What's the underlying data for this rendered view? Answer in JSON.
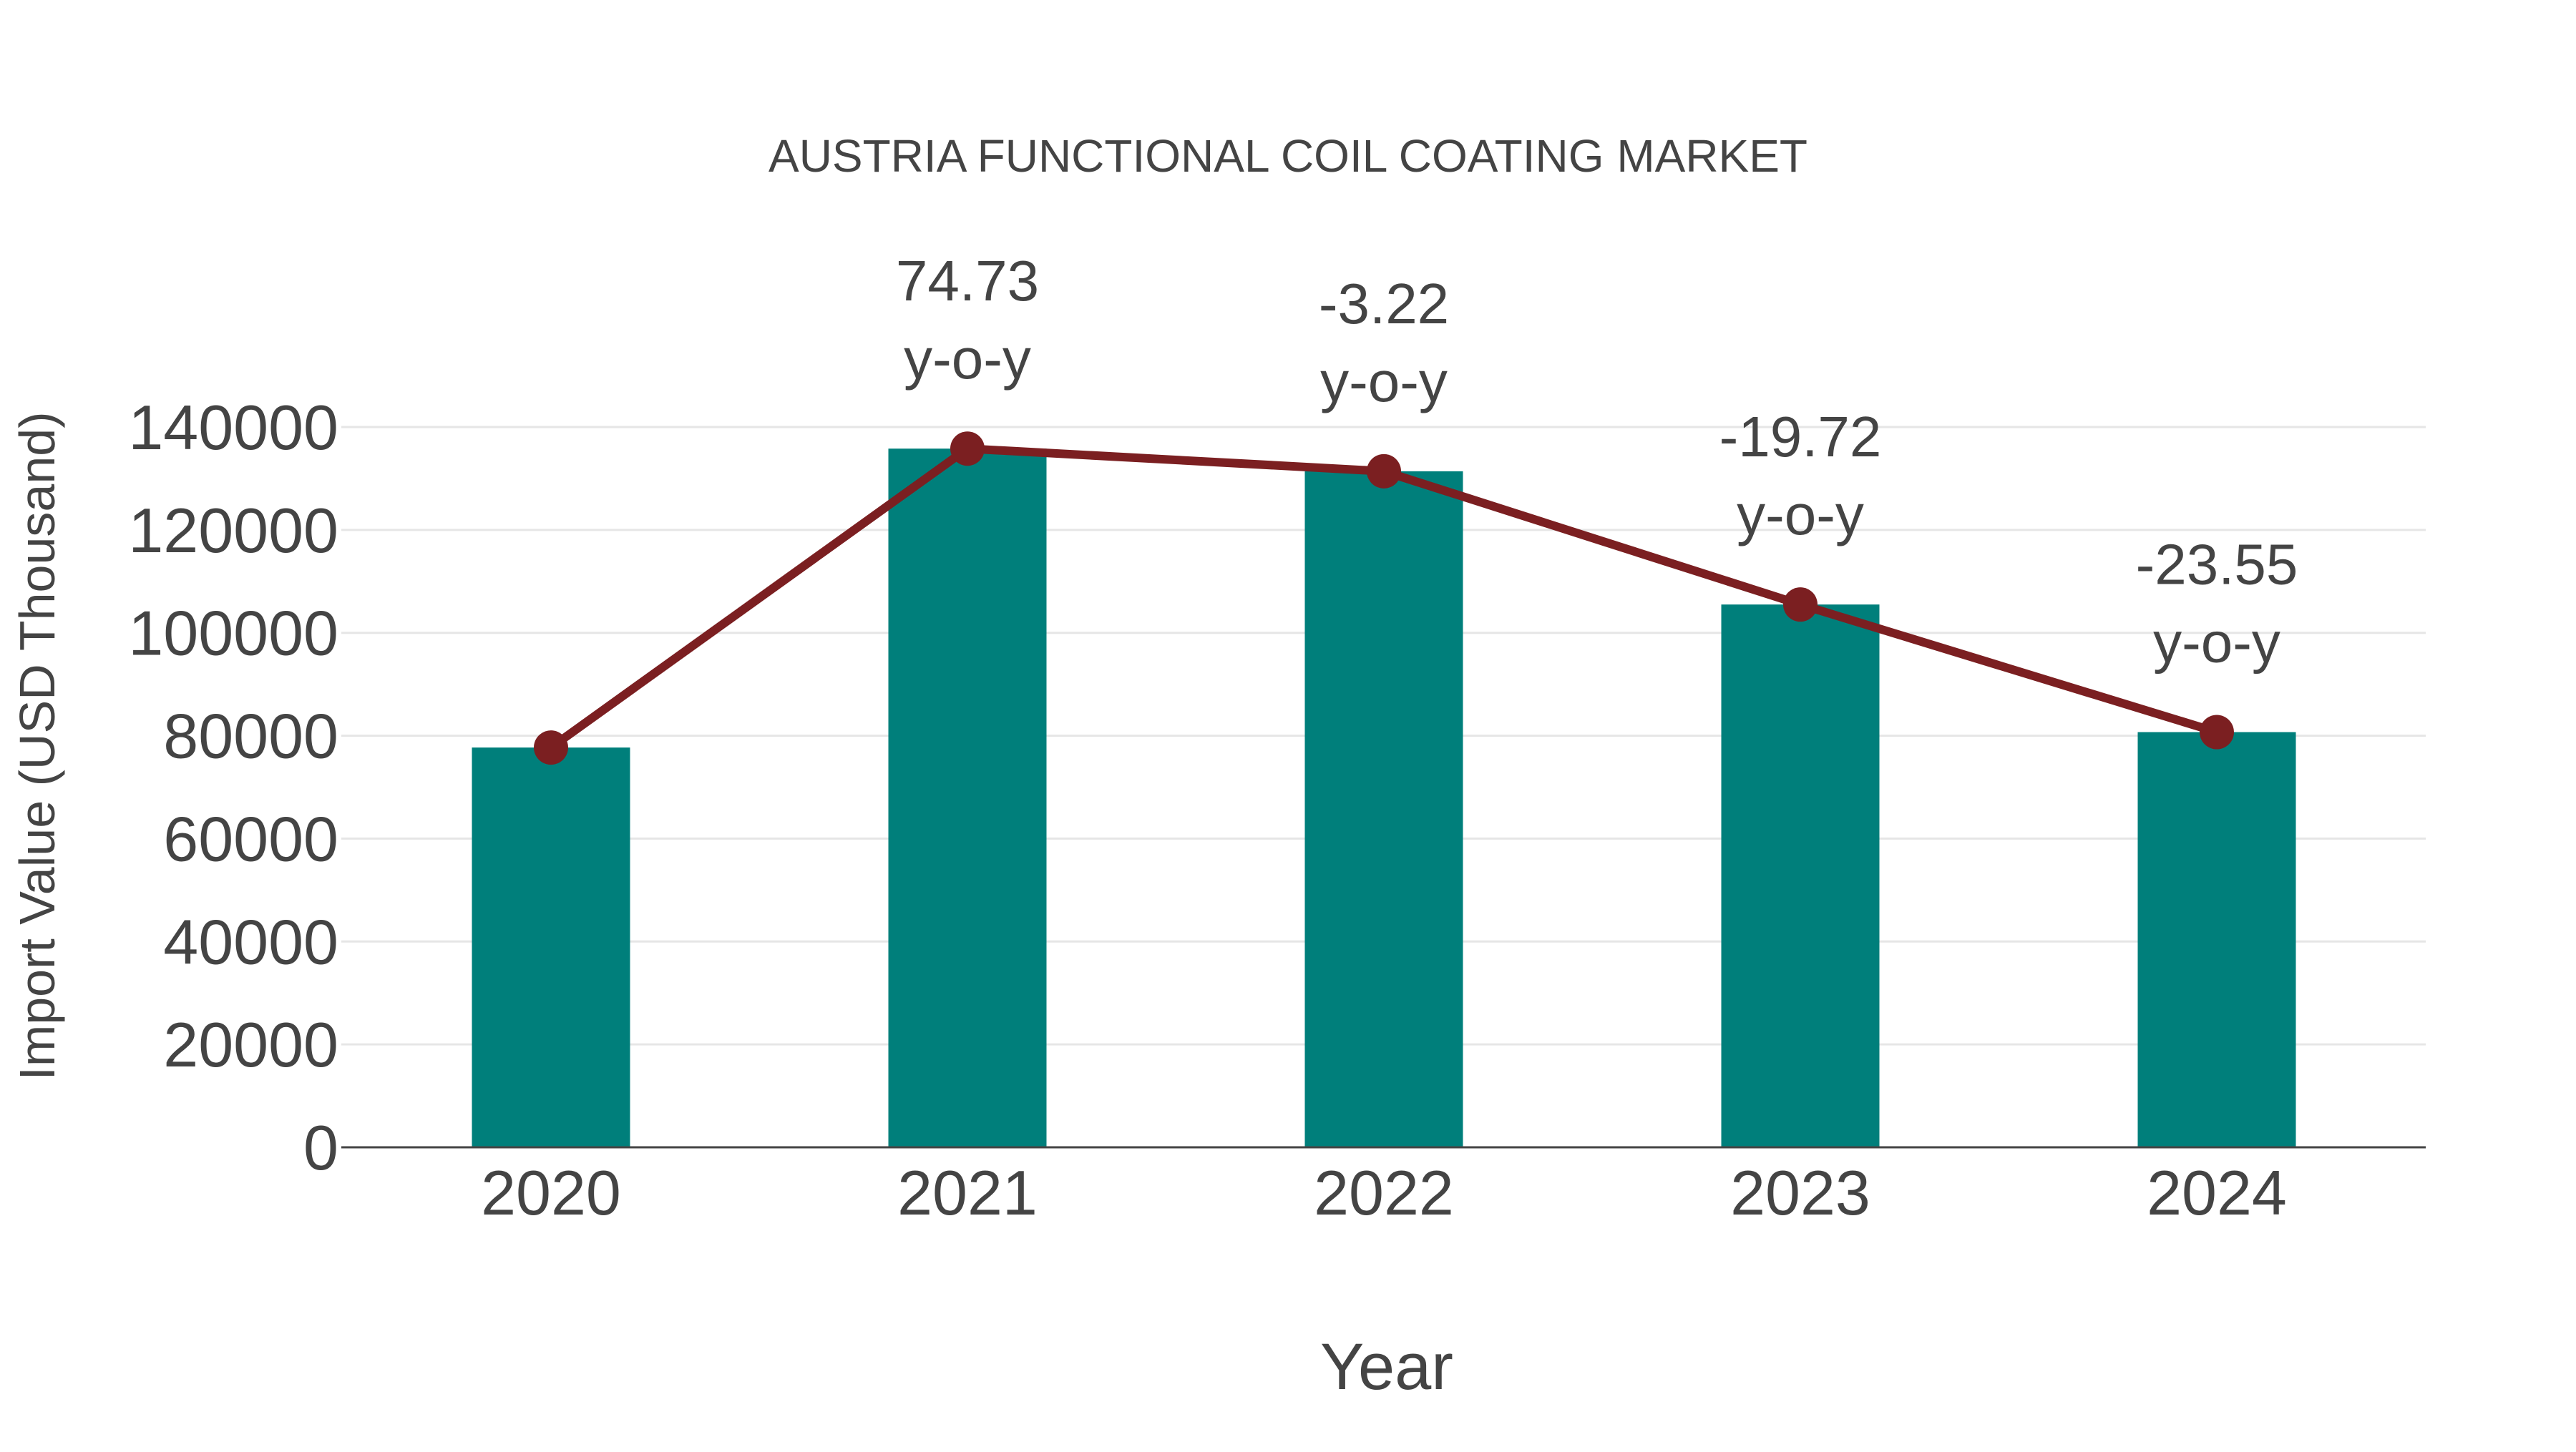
{
  "chart_data": {
    "type": "bar",
    "title": "AUSTRIA FUNCTIONAL COIL COATING MARKET",
    "xlabel": "Year",
    "ylabel": "Import Value (USD Thousand)",
    "categories": [
      "2020",
      "2021",
      "2022",
      "2023",
      "2024"
    ],
    "series": [
      {
        "name": "Import Value",
        "type": "bar",
        "color": "#007F7B",
        "values": [
          77700,
          135800,
          131400,
          105500,
          80700
        ]
      },
      {
        "name": "Import Value (line)",
        "type": "line",
        "color": "#7B1F21",
        "values": [
          77700,
          135800,
          131400,
          105500,
          80700
        ]
      }
    ],
    "annotations": [
      {
        "category": "2021",
        "value": "74.73",
        "suffix": "y-o-y"
      },
      {
        "category": "2022",
        "value": "-3.22",
        "suffix": "y-o-y"
      },
      {
        "category": "2023",
        "value": "-19.72",
        "suffix": "y-o-y"
      },
      {
        "category": "2024",
        "value": "-23.55",
        "suffix": "y-o-y"
      }
    ],
    "yticks": [
      "0",
      "20000",
      "40000",
      "60000",
      "80000",
      "100000",
      "120000",
      "140000"
    ],
    "ylim": [
      0,
      140000
    ],
    "grid": true,
    "legend": "none"
  }
}
